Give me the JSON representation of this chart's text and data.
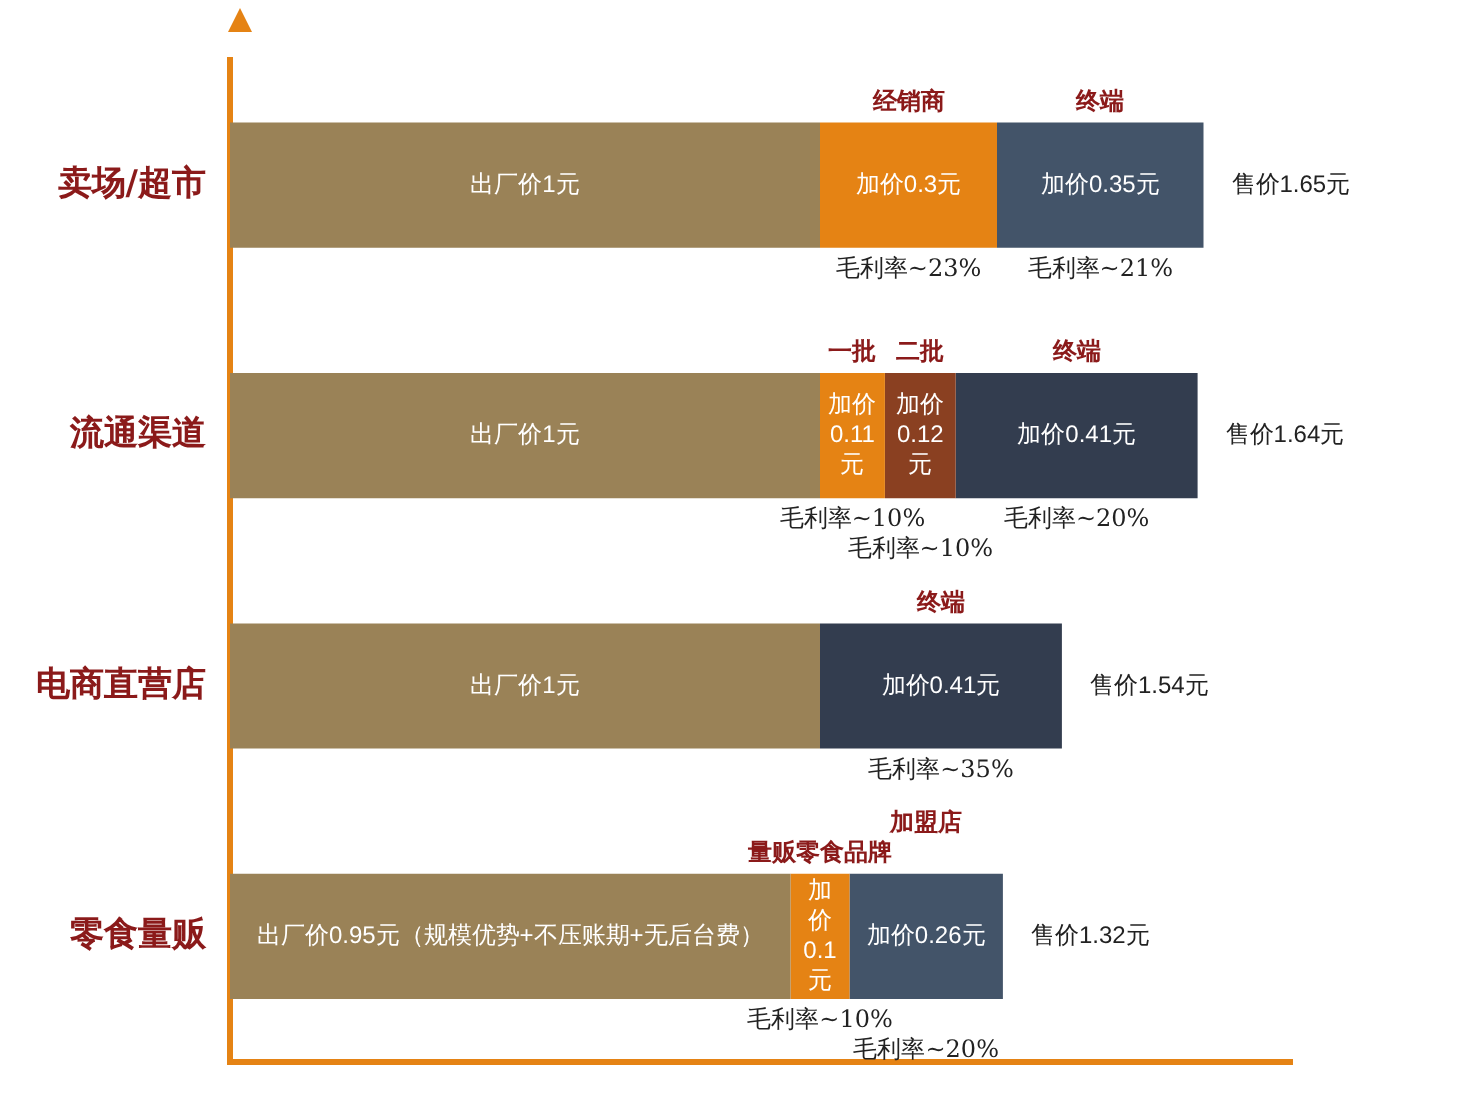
{
  "chart_data": {
    "type": "bar",
    "orientation": "horizontal",
    "stacked": true,
    "grid": false,
    "legend": false,
    "tick_labels": "y",
    "categories": [
      "卖场/超市",
      "流通渠道",
      "电商直营店",
      "零食量贩"
    ],
    "series": [
      {
        "color": "#9a8257",
        "values": [
          1,
          1,
          1,
          0.95
        ],
        "value_labels": [
          "出厂价1元",
          "出厂价1元",
          "出厂价1元",
          "出厂价0.95元（规模优势+不压账期+无后台费）"
        ]
      },
      {
        "colors": [
          "#e58314",
          "#e58314",
          "#333d4f",
          "#e58314"
        ],
        "values": [
          0.3,
          0.11,
          0.41,
          0.1
        ],
        "value_labels": [
          "加价0.3元",
          "加价0.11元",
          "加价0.41元",
          "加价0.1元"
        ]
      },
      {
        "colors": [
          "#435469",
          "#8a4021",
          null,
          "#435469"
        ],
        "values": [
          0.35,
          0.12,
          null,
          0.26
        ],
        "value_labels": [
          "加价0.35元",
          "加价0.12元",
          null,
          "加价0.26元"
        ]
      },
      {
        "color": "#333d4f",
        "values": [
          null,
          0.41,
          null,
          null
        ],
        "value_labels": [
          null,
          "加价0.41元",
          null,
          null
        ]
      }
    ],
    "totals": [
      "售价1.65元",
      "售价1.64元",
      "售价1.54元",
      "售价1.32元"
    ],
    "annotations": [
      "经销商",
      "毛利率~23%",
      "终端",
      "毛利率~21%",
      "一批",
      "毛利率~10%",
      "二批",
      "毛利率~10%",
      "终端",
      "毛利率~20%",
      "终端",
      "毛利率~35%",
      "量贩零食品牌",
      "毛利率~10%",
      "加盟店",
      "毛利率~20%"
    ]
  }
}
